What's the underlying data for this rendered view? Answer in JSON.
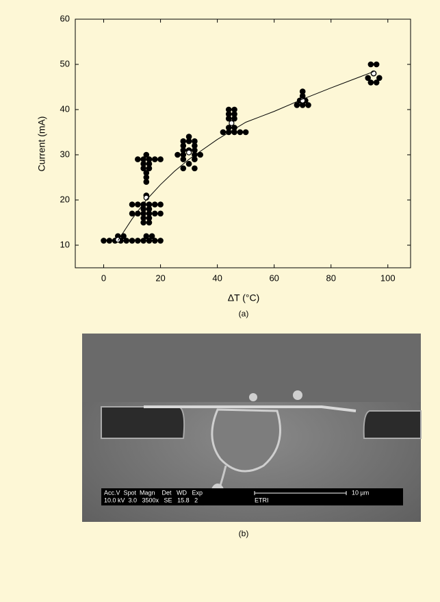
{
  "chart_data": {
    "type": "scatter",
    "xlabel": "ΔT (°C)",
    "ylabel": "Current (mA)",
    "caption": "(a)",
    "xlim": [
      -10,
      108
    ],
    "ylim": [
      5,
      60
    ],
    "xticks": [
      0,
      20,
      40,
      60,
      80,
      100
    ],
    "yticks": [
      10,
      20,
      30,
      40,
      50,
      60
    ],
    "series": [
      {
        "color": "#000000",
        "marker": "filled",
        "x": [
          0,
          2,
          4,
          6,
          8,
          10,
          12,
          14,
          16,
          18,
          20,
          5,
          7,
          15,
          17,
          10,
          12,
          14,
          16,
          18,
          20,
          14,
          16,
          10,
          12,
          14,
          16,
          18,
          20,
          14,
          16,
          14,
          16,
          15,
          12,
          14,
          16,
          18,
          20,
          15,
          14,
          16,
          14,
          16,
          15,
          15,
          15,
          30,
          28,
          30,
          32,
          28,
          32,
          28,
          30,
          32,
          26,
          28,
          32,
          34,
          28,
          32,
          30,
          28,
          32,
          44,
          46,
          44,
          46,
          44,
          46,
          44,
          46,
          42,
          44,
          46,
          48,
          50,
          70,
          70,
          69,
          71,
          68,
          70,
          72,
          94,
          96,
          95,
          93,
          97,
          94,
          96
        ],
        "values": [
          11,
          11,
          11,
          11,
          11,
          11,
          11,
          11,
          11,
          11,
          11,
          12,
          12,
          12,
          12,
          19,
          19,
          19,
          19,
          19,
          19,
          18,
          18,
          17,
          17,
          17,
          17,
          17,
          17,
          16,
          16,
          15,
          15,
          21,
          29,
          29,
          29,
          29,
          29,
          30,
          28,
          28,
          27,
          27,
          26,
          25,
          24,
          34,
          33,
          33,
          33,
          32,
          32,
          31,
          31,
          31,
          30,
          30,
          30,
          30,
          29,
          29,
          28,
          27,
          27,
          40,
          40,
          39,
          39,
          38,
          38,
          36,
          36,
          35,
          35,
          35,
          35,
          35,
          44,
          43,
          42,
          42,
          41,
          41,
          41,
          50,
          50,
          48,
          47,
          47,
          46,
          46
        ]
      },
      {
        "color": "#000000",
        "marker": "open",
        "x": [
          5,
          15,
          30,
          45,
          70,
          95
        ],
        "values": [
          11.2,
          20.5,
          30.5,
          37,
          42,
          48
        ]
      },
      {
        "color": "#000000",
        "marker": "line",
        "x": [
          5,
          10,
          15,
          20,
          25,
          30,
          40,
          50,
          60,
          70,
          80,
          90,
          95
        ],
        "values": [
          11,
          15.8,
          20,
          23.4,
          26.4,
          29,
          33.4,
          37.2,
          39.6,
          42.3,
          44.8,
          47.2,
          48.4
        ]
      }
    ]
  },
  "sem_image": {
    "info_header": "Acc.V  Spot  Magn    Det   WD   Exp",
    "info_values": "10.0 kV  3.0   3500x   SE   15.8   2",
    "label": "ETRI",
    "scale_label": "10 µm",
    "caption": "(b)"
  }
}
